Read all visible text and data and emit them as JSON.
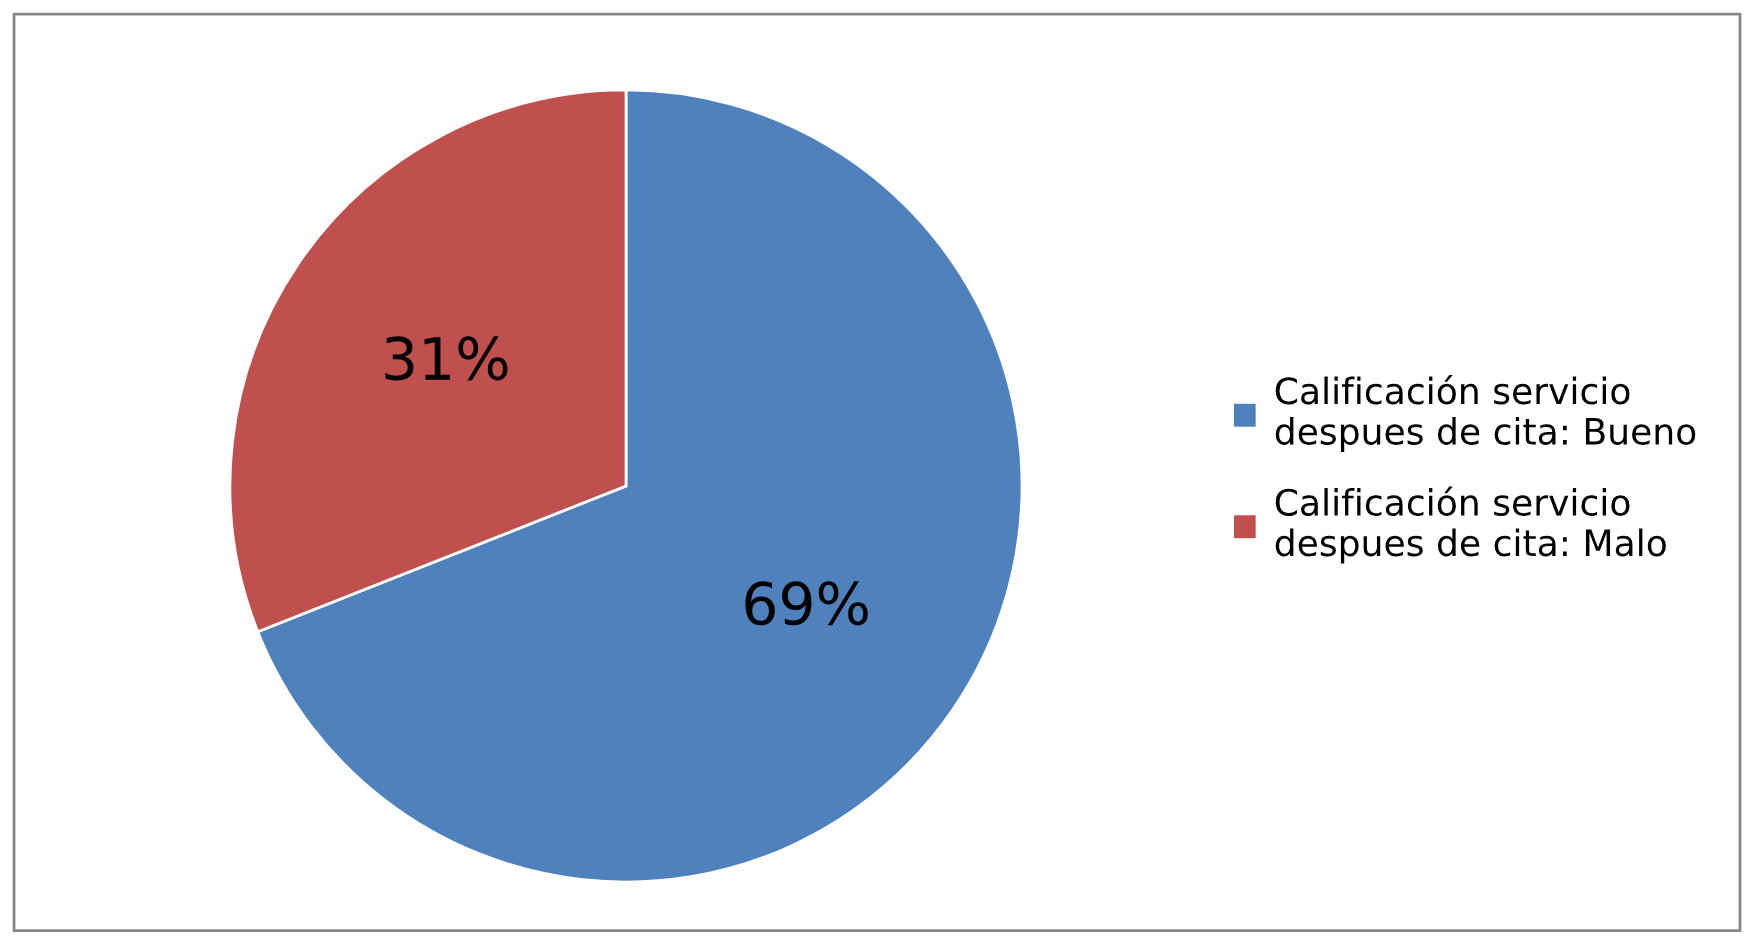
{
  "chart_data": {
    "type": "pie",
    "categories": [
      "Calificación servicio\ndespues de cita: Bueno",
      "Calificación servicio\ndespues de cita: Malo"
    ],
    "values": [
      69,
      31
    ],
    "colors": [
      "#4f81bd",
      "#c0504d"
    ],
    "value_labels": [
      "69%",
      "31%"
    ],
    "legend": "right"
  }
}
